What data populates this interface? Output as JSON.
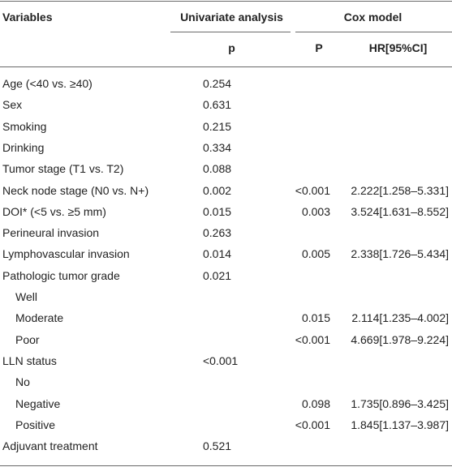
{
  "headers": {
    "variables": "Variables",
    "univariate": "Univariate analysis",
    "cox": "Cox model",
    "p": "p",
    "P": "P",
    "hr": "HR[95%CI]"
  },
  "rows": [
    {
      "variable": "Age (<40 vs. ≥40)",
      "univariate_p": "0.254",
      "cox_p": "",
      "hr": ""
    },
    {
      "variable": "Sex",
      "univariate_p": "0.631",
      "cox_p": "",
      "hr": ""
    },
    {
      "variable": "Smoking",
      "univariate_p": "0.215",
      "cox_p": "",
      "hr": ""
    },
    {
      "variable": "Drinking",
      "univariate_p": "0.334",
      "cox_p": "",
      "hr": ""
    },
    {
      "variable": "Tumor stage (T1 vs. T2)",
      "univariate_p": "0.088",
      "cox_p": "",
      "hr": ""
    },
    {
      "variable": "Neck node stage (N0 vs. N+)",
      "univariate_p": "0.002",
      "cox_p": "<0.001",
      "hr": "2.222[1.258–5.331]"
    },
    {
      "variable": "DOI* (<5 vs. ≥5 mm)",
      "univariate_p": "0.015",
      "cox_p": "0.003",
      "hr": "3.524[1.631–8.552]"
    },
    {
      "variable": "Perineural invasion",
      "univariate_p": "0.263",
      "cox_p": "",
      "hr": ""
    },
    {
      "variable": "Lymphovascular invasion",
      "univariate_p": "0.014",
      "cox_p": "0.005",
      "hr": "2.338[1.726–5.434]"
    },
    {
      "variable": "Pathologic tumor grade",
      "univariate_p": "0.021",
      "cox_p": "",
      "hr": ""
    },
    {
      "variable": "Well",
      "univariate_p": "",
      "cox_p": "",
      "hr": ""
    },
    {
      "variable": "Moderate",
      "univariate_p": "",
      "cox_p": "0.015",
      "hr": "2.114[1.235–4.002]"
    },
    {
      "variable": "Poor",
      "univariate_p": "",
      "cox_p": "<0.001",
      "hr": "4.669[1.978–9.224]"
    },
    {
      "variable": "LLN status",
      "univariate_p": "<0.001",
      "cox_p": "",
      "hr": ""
    },
    {
      "variable": "No",
      "univariate_p": "",
      "cox_p": "",
      "hr": ""
    },
    {
      "variable": "Negative",
      "univariate_p": "",
      "cox_p": "0.098",
      "hr": "1.735[0.896–3.425]"
    },
    {
      "variable": "Positive",
      "univariate_p": "",
      "cox_p": "<0.001",
      "hr": "1.845[1.137–3.987]"
    },
    {
      "variable": "Adjuvant treatment",
      "univariate_p": "0.521",
      "cox_p": "",
      "hr": ""
    }
  ]
}
